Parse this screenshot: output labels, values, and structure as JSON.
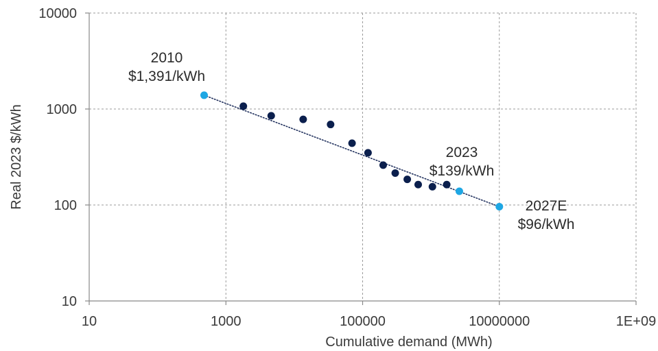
{
  "chart_data": {
    "type": "scatter",
    "xlabel": "Cumulative demand (MWh)",
    "ylabel": "Real 2023 $/kWh",
    "x_scale": "log",
    "y_scale": "log",
    "xlim": [
      10,
      1000000000
    ],
    "ylim": [
      10,
      10000
    ],
    "x_ticks": [
      "10",
      "1000",
      "100000",
      "10000000",
      "1E+09"
    ],
    "y_ticks": [
      "10",
      "100",
      "1000",
      "10000"
    ],
    "grid": true,
    "colors": {
      "historical": "#0b1f4d",
      "highlight": "#1ea7e4",
      "trendline": "#1f2f5c"
    },
    "points": [
      {
        "x": 480,
        "y": 1391,
        "highlight": true
      },
      {
        "x": 1800,
        "y": 1070,
        "highlight": false
      },
      {
        "x": 4600,
        "y": 850,
        "highlight": false
      },
      {
        "x": 13500,
        "y": 780,
        "highlight": false
      },
      {
        "x": 34000,
        "y": 690,
        "highlight": false
      },
      {
        "x": 70000,
        "y": 440,
        "highlight": false
      },
      {
        "x": 120000,
        "y": 350,
        "highlight": false
      },
      {
        "x": 200000,
        "y": 260,
        "highlight": false
      },
      {
        "x": 300000,
        "y": 215,
        "highlight": false
      },
      {
        "x": 450000,
        "y": 185,
        "highlight": false
      },
      {
        "x": 650000,
        "y": 163,
        "highlight": false
      },
      {
        "x": 1050000,
        "y": 155,
        "highlight": false
      },
      {
        "x": 1700000,
        "y": 163,
        "highlight": false
      },
      {
        "x": 2600000,
        "y": 139,
        "highlight": true
      },
      {
        "x": 10000000,
        "y": 96,
        "highlight": true
      }
    ],
    "trendline": {
      "x": [
        480,
        10000000
      ],
      "y": [
        1391,
        96
      ],
      "style": "dotted"
    },
    "annotations": [
      {
        "lines": [
          "2010",
          "$1,391/kWh"
        ],
        "x": 480,
        "y": 1391
      },
      {
        "lines": [
          "2023",
          "$139/kWh"
        ],
        "x": 2600000,
        "y": 139
      },
      {
        "lines": [
          "2027E",
          "$96/kWh"
        ],
        "x": 10000000,
        "y": 96
      }
    ]
  }
}
